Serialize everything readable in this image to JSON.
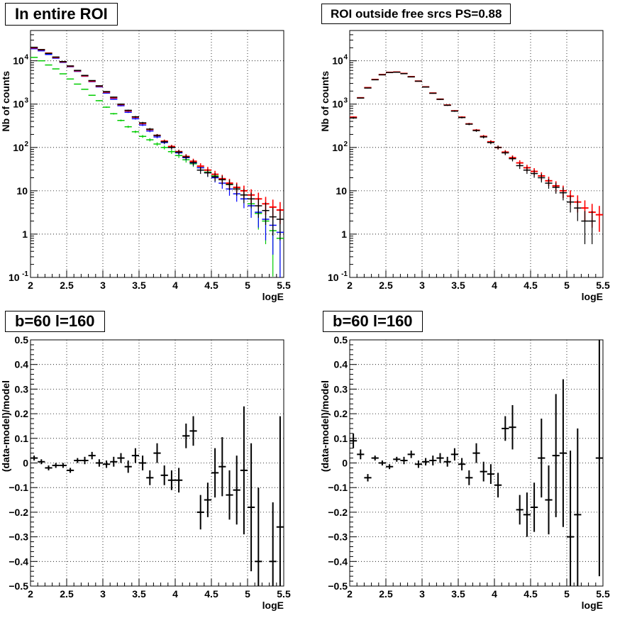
{
  "colors": {
    "black": "#000000",
    "red": "#ff0000",
    "blue": "#0000ff",
    "green": "#00cc00",
    "grid": "#000000"
  },
  "chart_data": [
    {
      "type": "scatter",
      "title": "In entire ROI",
      "xlabel": "logE",
      "ylabel": "Nb of counts",
      "xlim": [
        2,
        5.5
      ],
      "ylim": [
        0.1,
        50000
      ],
      "yscale": "log",
      "grid": true,
      "xticks": [
        "2",
        "2.5",
        "3",
        "3.5",
        "4",
        "4.5",
        "5",
        "5.5"
      ],
      "yticks": [
        "10^-1",
        "1",
        "10",
        "10^2",
        "10^3",
        "10^4"
      ],
      "x": [
        2.05,
        2.15,
        2.25,
        2.35,
        2.45,
        2.55,
        2.65,
        2.75,
        2.85,
        2.95,
        3.05,
        3.15,
        3.25,
        3.35,
        3.45,
        3.55,
        3.65,
        3.75,
        3.85,
        3.95,
        4.05,
        4.15,
        4.25,
        4.35,
        4.45,
        4.55,
        4.65,
        4.75,
        4.85,
        4.95,
        5.05,
        5.15,
        5.25,
        5.35,
        5.45
      ],
      "series": [
        {
          "color": "green",
          "values": [
            12000,
            10000,
            8000,
            6500,
            5000,
            3800,
            2900,
            2200,
            1600,
            1200,
            850,
            600,
            420,
            300,
            230,
            180,
            150,
            120,
            100,
            80,
            65,
            52,
            42,
            34,
            27,
            22,
            18,
            14,
            11,
            8,
            5,
            3,
            2,
            1.2,
            0.8
          ]
        },
        {
          "color": "blue",
          "values": [
            19000,
            17000,
            14000,
            11500,
            9200,
            7300,
            5700,
            4400,
            3300,
            2500,
            1800,
            1300,
            920,
            650,
            460,
            330,
            240,
            175,
            130,
            100,
            75,
            58,
            44,
            34,
            26,
            20,
            15,
            11,
            8.5,
            6.5,
            4.5,
            3.2,
            2.2,
            1.6,
            1.1
          ]
        },
        {
          "color": "red",
          "values": [
            20000,
            18000,
            15000,
            12000,
            9500,
            7500,
            5900,
            4500,
            3400,
            2600,
            1900,
            1400,
            980,
            700,
            500,
            360,
            260,
            190,
            140,
            105,
            80,
            62,
            48,
            37,
            30,
            24,
            19,
            15,
            12,
            10,
            8,
            6.5,
            5,
            4.2,
            3.6
          ]
        },
        {
          "color": "black",
          "values": [
            20500,
            18200,
            14800,
            12200,
            9600,
            7600,
            6000,
            4600,
            3500,
            2650,
            1950,
            1450,
            1000,
            720,
            510,
            370,
            265,
            190,
            135,
            100,
            78,
            60,
            45,
            30,
            26,
            21,
            18,
            14,
            11,
            8,
            6.5,
            4.5,
            3.5,
            2.5,
            2.2
          ]
        }
      ]
    },
    {
      "type": "scatter",
      "title": "ROI outside free srcs PS=0.88",
      "xlabel": "logE",
      "ylabel": "Nb of counts",
      "xlim": [
        2,
        5.5
      ],
      "ylim": [
        0.1,
        50000
      ],
      "yscale": "log",
      "grid": true,
      "xticks": [
        "2",
        "2.5",
        "3",
        "3.5",
        "4",
        "4.5",
        "5",
        "5.5"
      ],
      "yticks": [
        "10^-1",
        "1",
        "10",
        "10^2",
        "10^3",
        "10^4"
      ],
      "x": [
        2.05,
        2.15,
        2.25,
        2.35,
        2.45,
        2.55,
        2.65,
        2.75,
        2.85,
        2.95,
        3.05,
        3.15,
        3.25,
        3.35,
        3.45,
        3.55,
        3.65,
        3.75,
        3.85,
        3.95,
        4.05,
        4.15,
        4.25,
        4.35,
        4.45,
        4.55,
        4.65,
        4.75,
        4.85,
        4.95,
        5.05,
        5.15,
        5.25,
        5.35,
        5.45
      ],
      "series": [
        {
          "color": "red",
          "values": [
            500,
            1400,
            2400,
            3700,
            4800,
            5400,
            5500,
            5100,
            4300,
            3400,
            2500,
            1800,
            1300,
            950,
            700,
            500,
            350,
            250,
            180,
            135,
            100,
            78,
            58,
            44,
            34,
            28,
            22,
            17,
            13,
            10,
            7.5,
            5.5,
            4,
            3.2,
            2.8
          ]
        },
        {
          "color": "black",
          "values": [
            480,
            1380,
            2350,
            3650,
            4750,
            5350,
            5450,
            5050,
            4250,
            3380,
            2480,
            1780,
            1290,
            940,
            690,
            490,
            345,
            245,
            175,
            130,
            100,
            75,
            55,
            38,
            30,
            25,
            20,
            15,
            12,
            9,
            5.5,
            4,
            2,
            2,
            0
          ]
        }
      ]
    },
    {
      "type": "scatter",
      "title": "b=60 l=160",
      "xlabel": "logE",
      "ylabel": "(data-model)/model",
      "xlim": [
        2,
        5.5
      ],
      "ylim": [
        -0.5,
        0.5
      ],
      "yscale": "linear",
      "grid": true,
      "xticks": [
        "2",
        "2.5",
        "3",
        "3.5",
        "4",
        "4.5",
        "5",
        "5.5"
      ],
      "yticks": [
        "-0.5",
        "-0.4",
        "-0.3",
        "-0.2",
        "-0.1",
        "0",
        "0.1",
        "0.2",
        "0.3",
        "0.4",
        "0.5"
      ],
      "series": [
        {
          "color": "black",
          "x": [
            2.05,
            2.15,
            2.25,
            2.35,
            2.45,
            2.55,
            2.65,
            2.75,
            2.85,
            2.95,
            3.05,
            3.15,
            3.25,
            3.35,
            3.45,
            3.55,
            3.65,
            3.75,
            3.85,
            3.95,
            4.05,
            4.15,
            4.25,
            4.35,
            4.45,
            4.55,
            4.65,
            4.75,
            4.85,
            4.95,
            5.05,
            5.15,
            5.35,
            5.45
          ],
          "values": [
            0.02,
            0.005,
            -0.02,
            -0.01,
            -0.01,
            -0.03,
            0.01,
            0.01,
            0.03,
            0.0,
            -0.005,
            0.005,
            0.02,
            -0.015,
            0.03,
            0.0,
            -0.06,
            0.04,
            -0.05,
            -0.07,
            -0.07,
            0.11,
            0.13,
            -0.2,
            -0.15,
            -0.04,
            -0.015,
            -0.13,
            -0.11,
            -0.03,
            -0.18,
            -0.4,
            -0.4,
            -0.26
          ],
          "errors": [
            0.01,
            0.01,
            0.01,
            0.01,
            0.01,
            0.01,
            0.01,
            0.015,
            0.015,
            0.015,
            0.015,
            0.02,
            0.02,
            0.025,
            0.03,
            0.03,
            0.03,
            0.04,
            0.04,
            0.04,
            0.05,
            0.05,
            0.06,
            0.07,
            0.07,
            0.1,
            0.12,
            0.1,
            0.14,
            0.26,
            0.26,
            0.3,
            0.24,
            0.45
          ]
        }
      ]
    },
    {
      "type": "scatter",
      "title": "b=60 l=160",
      "xlabel": "logE",
      "ylabel": "(data-model)/model",
      "xlim": [
        2,
        5.5
      ],
      "ylim": [
        -0.5,
        0.5
      ],
      "yscale": "linear",
      "grid": true,
      "xticks": [
        "2",
        "2.5",
        "3",
        "3.5",
        "4",
        "4.5",
        "5",
        "5.5"
      ],
      "yticks": [
        "-0.5",
        "-0.4",
        "-0.3",
        "-0.2",
        "-0.1",
        "0",
        "0.1",
        "0.2",
        "0.3",
        "0.4",
        "0.5"
      ],
      "series": [
        {
          "color": "black",
          "x": [
            2.05,
            2.15,
            2.25,
            2.35,
            2.45,
            2.55,
            2.65,
            2.75,
            2.85,
            2.95,
            3.05,
            3.15,
            3.25,
            3.35,
            3.45,
            3.55,
            3.65,
            3.75,
            3.85,
            3.95,
            4.05,
            4.15,
            4.25,
            4.35,
            4.45,
            4.55,
            4.65,
            4.75,
            4.85,
            4.95,
            5.05,
            5.15,
            5.45
          ],
          "values": [
            0.09,
            0.035,
            -0.06,
            0.02,
            0.0,
            -0.015,
            0.015,
            0.01,
            0.035,
            -0.005,
            0.005,
            0.01,
            0.02,
            0.005,
            0.035,
            -0.005,
            -0.06,
            0.04,
            -0.035,
            -0.045,
            -0.09,
            0.14,
            0.145,
            -0.19,
            -0.21,
            -0.18,
            0.02,
            -0.15,
            0.03,
            0.04,
            -0.3,
            -0.21,
            0.02
          ],
          "errors": [
            0.03,
            0.02,
            0.015,
            0.01,
            0.01,
            0.01,
            0.01,
            0.015,
            0.015,
            0.015,
            0.015,
            0.02,
            0.02,
            0.02,
            0.025,
            0.025,
            0.03,
            0.04,
            0.04,
            0.04,
            0.05,
            0.05,
            0.09,
            0.06,
            0.09,
            0.1,
            0.16,
            0.14,
            0.25,
            0.3,
            0.35,
            0.35,
            0.48
          ]
        }
      ]
    }
  ]
}
